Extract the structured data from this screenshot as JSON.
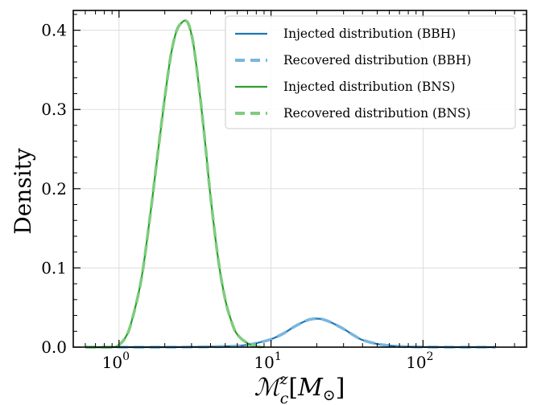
{
  "chart_data": {
    "type": "line",
    "xscale": "log",
    "xlim": [
      0.5,
      480
    ],
    "ylim": [
      0,
      0.425
    ],
    "grid": true,
    "legend_position": "top-right",
    "ylabel": "Density",
    "xlabel": "ℳ_c^z [M_⊙]",
    "xlabel_parts": {
      "main": "ℳ",
      "sup": "z",
      "sub": "c",
      "bracket_open": "[",
      "unit": "M",
      "unit_sub": "⊙",
      "bracket_close": "]"
    },
    "x_ticks": [
      {
        "value": 1,
        "base": "10",
        "exp": "0"
      },
      {
        "value": 10,
        "base": "10",
        "exp": "1"
      },
      {
        "value": 100,
        "base": "10",
        "exp": "2"
      }
    ],
    "y_ticks": [
      {
        "value": 0.0,
        "label": "0.0"
      },
      {
        "value": 0.1,
        "label": "0.1"
      },
      {
        "value": 0.2,
        "label": "0.2"
      },
      {
        "value": 0.3,
        "label": "0.3"
      },
      {
        "value": 0.4,
        "label": "0.4"
      }
    ],
    "series": [
      {
        "name": "Injected distribution (BBH)",
        "color": "#1f77b4",
        "style": "solid",
        "x": [
          0.6,
          1,
          2,
          4,
          5,
          6,
          7,
          8,
          10,
          12,
          14,
          16,
          18,
          20,
          22,
          25,
          30,
          35,
          40,
          50,
          60,
          70,
          80,
          100,
          150,
          300
        ],
        "y": [
          0.0,
          0.0,
          0.0,
          0.0005,
          0.001,
          0.0015,
          0.003,
          0.005,
          0.01,
          0.017,
          0.025,
          0.031,
          0.035,
          0.036,
          0.035,
          0.031,
          0.023,
          0.015,
          0.009,
          0.004,
          0.002,
          0.001,
          0.0005,
          0.0002,
          0.0,
          0.0
        ]
      },
      {
        "name": "Recovered distribution (BBH)",
        "color": "#7ab6dc",
        "style": "dashed",
        "x": [
          0.6,
          1,
          2,
          4,
          5,
          6,
          7,
          8,
          10,
          12,
          14,
          16,
          18,
          20,
          22,
          25,
          30,
          35,
          40,
          50,
          60,
          70,
          80,
          100,
          150,
          300
        ],
        "y": [
          0.0,
          0.0,
          0.0,
          0.0005,
          0.001,
          0.0015,
          0.003,
          0.005,
          0.01,
          0.017,
          0.025,
          0.031,
          0.035,
          0.036,
          0.035,
          0.031,
          0.023,
          0.015,
          0.009,
          0.004,
          0.002,
          0.001,
          0.0005,
          0.0002,
          0.0,
          0.0
        ]
      },
      {
        "name": "Injected distribution (BNS)",
        "color": "#2ca02c",
        "style": "solid",
        "x": [
          0.6,
          0.9,
          1.0,
          1.1,
          1.2,
          1.4,
          1.6,
          1.8,
          2.0,
          2.2,
          2.4,
          2.6,
          2.75,
          2.9,
          3.1,
          3.4,
          3.7,
          4.0,
          4.5,
          5.0,
          5.5,
          6.0,
          7.0,
          8.0,
          9.0
        ],
        "y": [
          0.0,
          0.0,
          0.003,
          0.012,
          0.03,
          0.085,
          0.165,
          0.245,
          0.315,
          0.37,
          0.4,
          0.41,
          0.412,
          0.405,
          0.38,
          0.32,
          0.255,
          0.19,
          0.11,
          0.06,
          0.032,
          0.016,
          0.005,
          0.001,
          0.0
        ]
      },
      {
        "name": "Recovered distribution (BNS)",
        "color": "#7fcc7f",
        "style": "dashed",
        "x": [
          0.6,
          0.9,
          1.0,
          1.1,
          1.2,
          1.4,
          1.6,
          1.8,
          2.0,
          2.2,
          2.4,
          2.6,
          2.75,
          2.9,
          3.1,
          3.4,
          3.7,
          4.0,
          4.5,
          5.0,
          5.5,
          6.0,
          7.0,
          8.0,
          9.0
        ],
        "y": [
          0.0,
          0.0,
          0.003,
          0.012,
          0.03,
          0.085,
          0.165,
          0.245,
          0.315,
          0.37,
          0.4,
          0.41,
          0.412,
          0.405,
          0.38,
          0.32,
          0.255,
          0.19,
          0.11,
          0.06,
          0.032,
          0.016,
          0.005,
          0.001,
          0.0
        ]
      }
    ]
  }
}
